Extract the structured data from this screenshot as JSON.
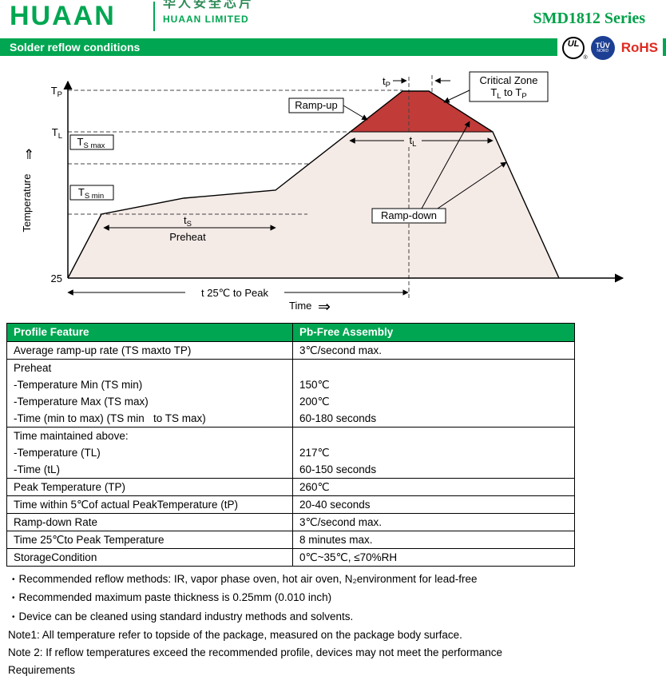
{
  "header": {
    "logo": "HUAAN",
    "logo_cn": "华人安全芯片",
    "company": "HUAAN LIMITED",
    "series": "SMD1812 Series"
  },
  "banner": {
    "title": "Solder reflow conditions",
    "ul": "UL",
    "ul_reg": "®",
    "tuv_line1": "TÜV",
    "tuv_line2": "NORD",
    "rohs": "RoHS"
  },
  "chart": {
    "y_axis_label": "Temperature",
    "x_axis_label": "Time",
    "y_arrow": "⇑",
    "x_arrow": "⇒",
    "origin_label": "25",
    "tp_label": [
      "T",
      "P"
    ],
    "tl_label": [
      "T",
      "L"
    ],
    "ts_max_label": [
      "T",
      "S max"
    ],
    "ts_min_label": [
      "T",
      "S min"
    ],
    "tp_dim": [
      "t",
      "P"
    ],
    "tl_dim": [
      "t",
      "L"
    ],
    "ts_dim": [
      "t",
      "S"
    ],
    "preheat_label": "Preheat",
    "ramp_up_label": "Ramp-up",
    "ramp_down_label": "Ramp-down",
    "critical_line1": "Critical Zone",
    "critical_line2": [
      "T",
      "L",
      " to T",
      "P"
    ],
    "t25_label": "t 25℃ to Peak"
  },
  "table": {
    "headers": [
      "Profile Feature",
      "Pb-Free Assembly"
    ],
    "rows": [
      {
        "feature": [
          "Average ramp-up rate (TS maxto TP)"
        ],
        "value": [
          "3℃/second max."
        ]
      },
      {
        "feature": [
          "Preheat",
          "-Temperature Min (TS min)",
          "-Temperature Max (TS max)",
          "-Time (min to max) (TS min   to TS max)"
        ],
        "value": [
          "",
          "150℃",
          "200℃",
          "60-180 seconds"
        ]
      },
      {
        "feature": [
          "Time maintained above:",
          "-Temperature (TL)",
          "-Time (tL)"
        ],
        "value": [
          "",
          "217℃",
          "60-150 seconds"
        ]
      },
      {
        "feature": [
          "Peak Temperature (TP)"
        ],
        "value": [
          "260℃"
        ]
      },
      {
        "feature": [
          "Time within 5℃of actual PeakTemperature (tP)"
        ],
        "value": [
          "20-40 seconds"
        ]
      },
      {
        "feature": [
          "Ramp-down Rate"
        ],
        "value": [
          "3℃/second max."
        ]
      },
      {
        "feature": [
          "Time 25℃to Peak Temperature"
        ],
        "value": [
          "8 minutes max."
        ]
      },
      {
        "feature": [
          "StorageCondition"
        ],
        "value": [
          "0℃~35℃, ≤70%RH"
        ]
      }
    ]
  },
  "notes": {
    "bullet_char": "•",
    "items": [
      {
        "bullet": true,
        "text": "Recommended reflow methods: IR, vapor phase oven, hot air oven, N₂environment for lead-free"
      },
      {
        "bullet": true,
        "text": "Recommended maximum paste thickness is 0.25mm (0.010 inch)"
      },
      {
        "bullet": true,
        "text": "Device can be cleaned using standard industry methods and solvents."
      },
      {
        "bullet": false,
        "text": "Note1: All temperature refer to topside of the package, measured on the package body surface."
      },
      {
        "bullet": false,
        "text": "Note 2: If reflow temperatures exceed the recommended profile, devices may not meet the performance"
      },
      {
        "bullet": false,
        "text": "Requirements"
      }
    ]
  },
  "colors": {
    "green": "#00A651",
    "red": "#C13B38",
    "shade": "#F4EAE6",
    "tuv_blue": "#1C3F94",
    "rohs_red": "#E02A20"
  }
}
